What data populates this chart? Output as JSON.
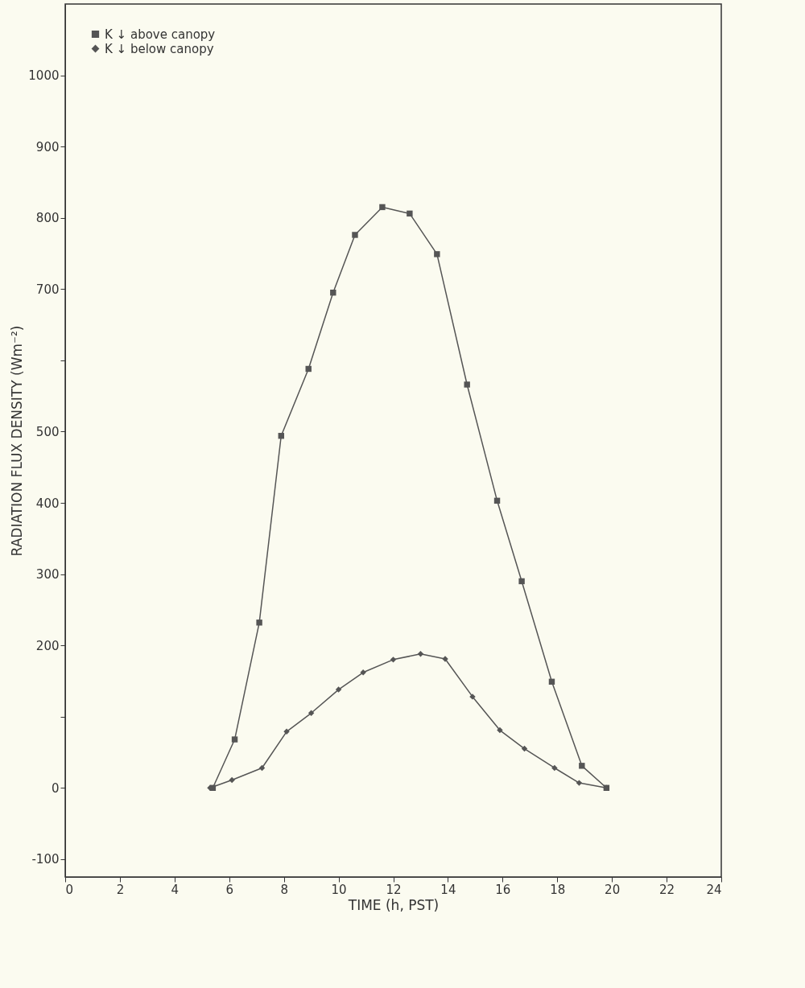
{
  "chart_data": {
    "type": "line",
    "xlabel": "TIME (h, PST)",
    "ylabel": "RADIATION FLUX DENSITY (Wm⁻²)",
    "xlim": [
      0,
      24
    ],
    "xticks": [
      0,
      2,
      4,
      6,
      8,
      10,
      12,
      14,
      16,
      18,
      20,
      22,
      24
    ],
    "ylim": [
      -125,
      1100
    ],
    "yticks": [
      -100,
      0,
      {
        "value": 100,
        "label": null
      },
      200,
      300,
      400,
      500,
      {
        "value": 600,
        "label": null
      },
      700,
      800,
      900,
      1000
    ],
    "legend": "top left",
    "grid": false,
    "line_style": "solid",
    "series": [
      {
        "name": "K ↓ above canopy",
        "color": "#555555",
        "marker": "square",
        "x": [
          5.4,
          6.2,
          7.1,
          7.9,
          8.9,
          9.8,
          10.6,
          11.6,
          12.6,
          13.6,
          14.7,
          15.8,
          16.7,
          17.8,
          18.9,
          19.8
        ],
        "values": [
          0,
          68,
          232,
          494,
          588,
          695,
          776,
          815,
          806,
          749,
          566,
          403,
          290,
          149,
          31,
          0
        ]
      },
      {
        "name": "K ↓ below canopy",
        "color": "#555555",
        "marker": "diamond",
        "x": [
          5.3,
          6.1,
          7.2,
          8.1,
          9.0,
          10.0,
          10.9,
          12.0,
          13.0,
          13.9,
          14.9,
          15.9,
          16.8,
          17.9,
          18.8,
          19.8
        ],
        "values": [
          0,
          11,
          28,
          79,
          105,
          138,
          162,
          180,
          188,
          181,
          128,
          81,
          55,
          28,
          7,
          0
        ]
      }
    ]
  }
}
